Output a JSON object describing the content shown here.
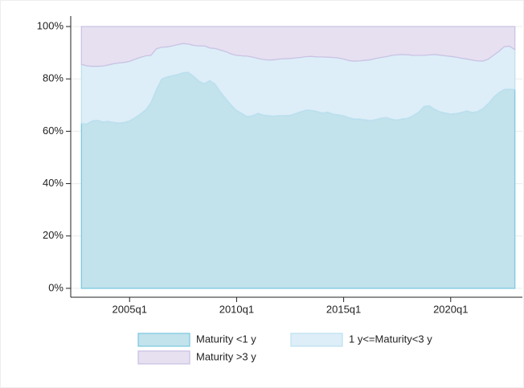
{
  "chart_data": {
    "type": "stacked-area",
    "x": [
      2002.75,
      2003,
      2003.25,
      2003.5,
      2003.75,
      2004,
      2004.25,
      2004.5,
      2004.75,
      2005,
      2005.25,
      2005.5,
      2005.75,
      2006,
      2006.25,
      2006.5,
      2006.75,
      2007,
      2007.25,
      2007.5,
      2007.75,
      2008,
      2008.25,
      2008.5,
      2008.75,
      2009,
      2009.25,
      2009.5,
      2009.75,
      2010,
      2010.25,
      2010.5,
      2010.75,
      2011,
      2011.25,
      2011.5,
      2011.75,
      2012,
      2012.25,
      2012.5,
      2012.75,
      2013,
      2013.25,
      2013.5,
      2013.75,
      2014,
      2014.25,
      2014.5,
      2014.75,
      2015,
      2015.25,
      2015.5,
      2015.75,
      2016,
      2016.25,
      2016.5,
      2016.75,
      2017,
      2017.25,
      2017.5,
      2017.75,
      2018,
      2018.25,
      2018.5,
      2018.75,
      2019,
      2019.25,
      2019.5,
      2019.75,
      2020,
      2020.25,
      2020.5,
      2020.75,
      2021,
      2021.25,
      2021.5,
      2021.75,
      2022,
      2022.25,
      2022.5,
      2022.75,
      2023
    ],
    "series": [
      {
        "name": "Maturity <1 y",
        "color": "#c2e2ec",
        "line": "#7fcbe0",
        "values": [
          63,
          62.8,
          64,
          64.2,
          63.6,
          63.8,
          63.4,
          63.2,
          63.4,
          64,
          65.2,
          66.6,
          68.2,
          71,
          76,
          80,
          80.8,
          81.3,
          81.7,
          82.4,
          82.5,
          81,
          79.1,
          78.2,
          79.4,
          78,
          75,
          72.5,
          70,
          68,
          66.8,
          65.6,
          66,
          66.9,
          66.2,
          66,
          65.8,
          66,
          66,
          66.1,
          66.8,
          67.5,
          68.1,
          68,
          67.6,
          67,
          67.3,
          66.6,
          66.3,
          66,
          65.2,
          64.7,
          64.7,
          64.4,
          64.1,
          64.5,
          65,
          65.3,
          64.6,
          64.3,
          64.8,
          65,
          66,
          67.3,
          69.5,
          69.8,
          68.4,
          67.5,
          67,
          66.6,
          66.8,
          67.2,
          67.8,
          67.2,
          67.5,
          68.7,
          70.5,
          73,
          74.8,
          76,
          76.1,
          76
        ]
      },
      {
        "name": "1 y<=Maturity<3 y",
        "color": "#ddeef8",
        "line": "#bfe1f0",
        "values": [
          22.5,
          22.2,
          20.8,
          20.6,
          21.3,
          21.5,
          22.4,
          22.9,
          22.9,
          22.7,
          22.3,
          21.6,
          20.6,
          18,
          15.5,
          12.1,
          11.4,
          11.3,
          11.4,
          11.1,
          10.8,
          11.8,
          13.5,
          14.4,
          12.4,
          13.6,
          16,
          17.9,
          19.5,
          21,
          22,
          23.1,
          22.3,
          20.9,
          21.2,
          21.2,
          21.5,
          21.6,
          21.7,
          21.7,
          21.2,
          20.7,
          20.4,
          20.6,
          20.8,
          21.4,
          21,
          21.6,
          21.7,
          21.6,
          21.8,
          22.1,
          22.2,
          22.7,
          23.2,
          23.3,
          23.2,
          23.2,
          24.4,
          24.9,
          24.5,
          24.2,
          23,
          21.7,
          19.5,
          19.4,
          20.9,
          21.6,
          21.8,
          22,
          21.5,
          20.7,
          19.8,
          20,
          19.4,
          18.1,
          17,
          16,
          15.7,
          16.3,
          16.4,
          15.2
        ]
      },
      {
        "name": "Maturity >3 y",
        "color": "#e6e0f1",
        "line": "#cbc3e3",
        "values": [
          14.5,
          15,
          15.2,
          15.2,
          15.1,
          14.7,
          14.2,
          13.9,
          13.7,
          13.3,
          12.5,
          11.8,
          11.2,
          11,
          8.5,
          7.9,
          7.8,
          7.4,
          6.9,
          6.5,
          6.7,
          7.2,
          7.4,
          7.4,
          8.2,
          8.4,
          9,
          9.6,
          10.5,
          11,
          11.2,
          11.3,
          11.7,
          12.2,
          12.6,
          12.8,
          12.7,
          12.4,
          12.3,
          12.2,
          12,
          11.8,
          11.5,
          11.4,
          11.6,
          11.6,
          11.7,
          11.8,
          12,
          12.4,
          13,
          13.2,
          13.1,
          12.9,
          12.7,
          12.2,
          11.8,
          11.5,
          11,
          10.8,
          10.7,
          10.8,
          11,
          11,
          11,
          10.8,
          10.7,
          10.9,
          11.2,
          11.4,
          11.7,
          12.1,
          12.4,
          12.8,
          13.1,
          13.2,
          12.5,
          11,
          9.5,
          7.7,
          7.5,
          8.8
        ]
      }
    ],
    "xlim": [
      2002.25,
      2023.35
    ],
    "xticks": [
      {
        "value": 2005,
        "label": "2005q1"
      },
      {
        "value": 2010,
        "label": "2010q1"
      },
      {
        "value": 2015,
        "label": "2015q1"
      },
      {
        "value": 2020,
        "label": "2020q1"
      }
    ],
    "ylim": [
      -3.4,
      104
    ],
    "yticks": [
      {
        "value": 0,
        "label": "0%"
      },
      {
        "value": 20,
        "label": "20%"
      },
      {
        "value": 40,
        "label": "40%"
      },
      {
        "value": 60,
        "label": "60%"
      },
      {
        "value": 80,
        "label": "80%"
      },
      {
        "value": 100,
        "label": "100%"
      }
    ],
    "grid": true,
    "legend": "bottom"
  }
}
